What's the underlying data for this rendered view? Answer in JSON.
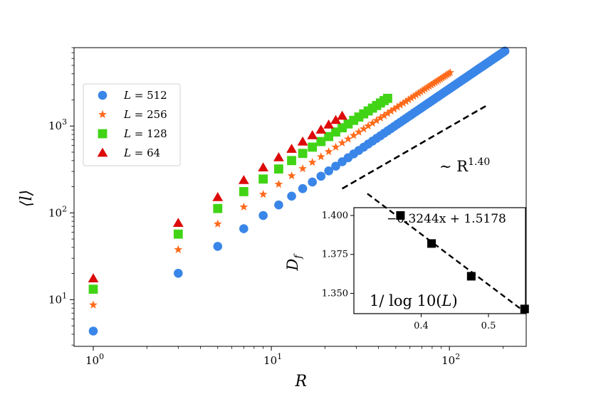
{
  "chart_data": {
    "type": "scatter",
    "xlabel": "R",
    "ylabel": "⟨l⟩",
    "xscale": "log",
    "yscale": "log",
    "xlim": [
      0.78,
      270
    ],
    "ylim": [
      2.9,
      8000
    ],
    "xticks": [
      {
        "value": 1,
        "base": "10",
        "exp": "0"
      },
      {
        "value": 10,
        "base": "10",
        "exp": "1"
      },
      {
        "value": 100,
        "base": "10",
        "exp": "2"
      }
    ],
    "yticks": [
      {
        "value": 10,
        "base": "10",
        "exp": "1"
      },
      {
        "value": 100,
        "base": "10",
        "exp": "2"
      },
      {
        "value": 1000,
        "base": "10",
        "exp": "3"
      }
    ],
    "legend_position": "upper-left",
    "series": [
      {
        "name": "L = 512",
        "label_var": "L",
        "label_eq": " = 512",
        "marker": "circle",
        "color": "#3a86e8",
        "max_r": 205,
        "a": 4.35,
        "b": 1.395
      },
      {
        "name": "L = 256",
        "label_var": "L",
        "label_eq": " = 256",
        "marker": "star",
        "color": "#ff6a1a",
        "max_r": 101,
        "a": 8.7,
        "b": 1.335
      },
      {
        "name": "L = 128",
        "label_var": "L",
        "label_eq": " = 128",
        "marker": "square",
        "color": "#41d416",
        "max_r": 45,
        "a": 13.2,
        "b": 1.33
      },
      {
        "name": "L = 64",
        "label_var": "L",
        "label_eq": " = 64",
        "marker": "triangle",
        "color": "#dd0a0a",
        "max_r": 25,
        "a": 17.5,
        "b": 1.34
      }
    ],
    "guide_line": {
      "x": [
        25,
        160
      ],
      "y": [
        190,
        1700
      ],
      "label_prefix": "∼ R",
      "label_exp": "1.40"
    },
    "inset": {
      "ylabel": "D_f",
      "xlabel": "1/ log 10(L)",
      "fit_label": "−0.3244x + 1.5178",
      "xlim": [
        0.3,
        0.555
      ],
      "ylim": [
        1.337,
        1.405
      ],
      "xticks": [
        "0.4",
        "0.5"
      ],
      "yticks": [
        "1.350",
        "1.375",
        "1.400"
      ],
      "points": [
        {
          "x": 0.3692,
          "y": 1.4
        },
        {
          "x": 0.4154,
          "y": 1.382
        },
        {
          "x": 0.4744,
          "y": 1.361
        },
        {
          "x": 0.5537,
          "y": 1.34
        }
      ],
      "fit": {
        "slope": -0.3244,
        "intercept": 1.5178,
        "x": [
          0.32,
          0.556
        ]
      }
    }
  }
}
